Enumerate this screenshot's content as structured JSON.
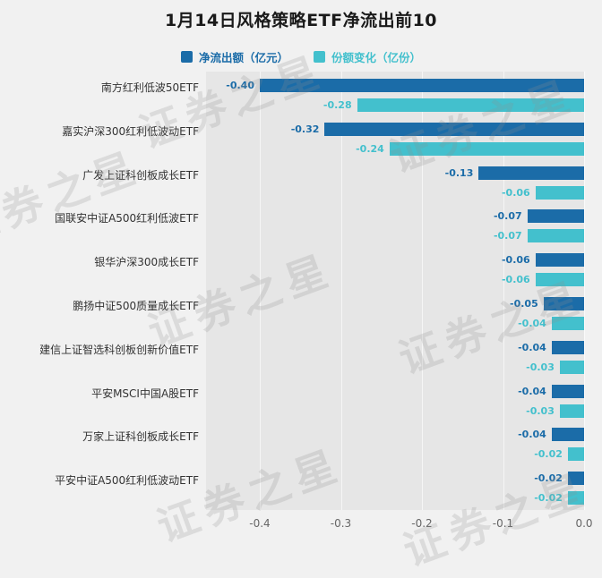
{
  "title": "1月14日风格策略ETF净流出前10",
  "watermark": "证券之星",
  "legend": [
    {
      "label": "净流出额（亿元）",
      "color": "#1b6ca8"
    },
    {
      "label": "份额变化（亿份）",
      "color": "#43c0cd"
    }
  ],
  "chart_data": {
    "type": "bar",
    "orientation": "horizontal",
    "title": "1月14日风格策略ETF净流出前10",
    "categories": [
      "南方红利低波50ETF",
      "嘉实沪深300红利低波动ETF",
      "广发上证科创板成长ETF",
      "国联安中证A500红利低波ETF",
      "银华沪深300成长ETF",
      "鹏扬中证500质量成长ETF",
      "建信上证智选科创板创新价值ETF",
      "平安MSCI中国A股ETF",
      "万家上证科创板成长ETF",
      "平安中证A500红利低波动ETF"
    ],
    "series": [
      {
        "name": "净流出额（亿元）",
        "color": "#1b6ca8",
        "values": [
          -0.4,
          -0.32,
          -0.13,
          -0.07,
          -0.06,
          -0.05,
          -0.04,
          -0.04,
          -0.04,
          -0.02
        ],
        "labels": [
          "-0.40",
          "-0.32",
          "-0.13",
          "-0.07",
          "-0.06",
          "-0.05",
          "-0.04",
          "-0.04",
          "-0.04",
          "-0.02"
        ]
      },
      {
        "name": "份额变化（亿份）",
        "color": "#43c0cd",
        "values": [
          -0.28,
          -0.24,
          -0.06,
          -0.07,
          -0.06,
          -0.04,
          -0.03,
          -0.03,
          -0.02,
          -0.02
        ],
        "labels": [
          "-0.28",
          "-0.24",
          "-0.06",
          "-0.07",
          "-0.06",
          "-0.04",
          "-0.03",
          "-0.03",
          "-0.02",
          "-0.02"
        ]
      }
    ],
    "xlim": [
      -0.466,
      0
    ],
    "xticks": [
      "-0.4",
      "-0.3",
      "-0.2",
      "-0.1",
      "0.0"
    ],
    "xtick_values": [
      -0.4,
      -0.3,
      -0.2,
      -0.1,
      0.0
    ],
    "grid": true,
    "legend_position": "top",
    "colors": {
      "background": "#f1f1f1",
      "plot_background": "#e6e6e6",
      "grid": "#ffffff",
      "axis_text": "#666666",
      "category_text": "#333333",
      "watermark_text": "#c8c8c8"
    }
  }
}
